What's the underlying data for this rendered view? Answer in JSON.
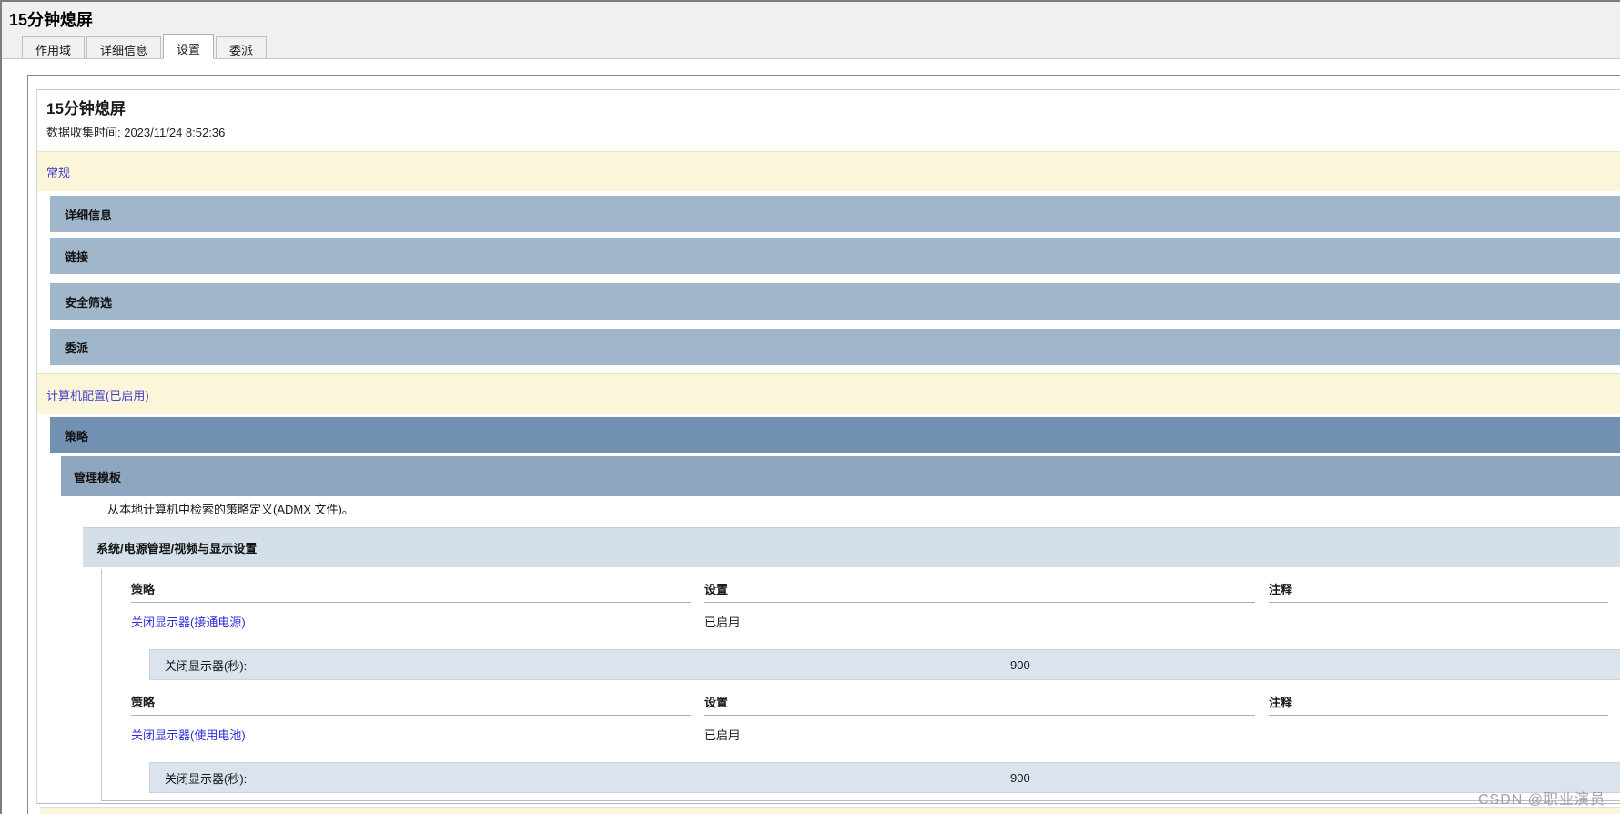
{
  "window": {
    "title": "15分钟熄屏"
  },
  "tabs": [
    {
      "label": "作用域",
      "active": false
    },
    {
      "label": "详细信息",
      "active": false
    },
    {
      "label": "设置",
      "active": true
    },
    {
      "label": "委派",
      "active": false
    }
  ],
  "report": {
    "title": "15分钟熄屏",
    "collected": "数据收集时间: 2023/11/24 8:52:36"
  },
  "general": {
    "label": "常规",
    "items": [
      "详细信息",
      "链接",
      "安全筛选",
      "委派"
    ]
  },
  "computer": {
    "label": "计算机配置(已启用)",
    "policies_label": "策略",
    "admin_templates_label": "管理模板",
    "admx_note": "从本地计算机中检索的策略定义(ADMX 文件)。",
    "category": "系统/电源管理/视频与显示设置",
    "tables": [
      {
        "headers": {
          "policy": "策略",
          "setting": "设置",
          "comment": "注释"
        },
        "policy_link": "关闭显示器(接通电源)",
        "setting_value": "已启用",
        "sub_label": "关闭显示器(秒):",
        "sub_value": "900"
      },
      {
        "headers": {
          "policy": "策略",
          "setting": "设置",
          "comment": "注释"
        },
        "policy_link": "关闭显示器(使用电池)",
        "setting_value": "已启用",
        "sub_label": "关闭显示器(秒):",
        "sub_value": "900"
      }
    ]
  },
  "watermark": "CSDN @职业演员",
  "colors": {
    "section_cream": "#fbf6da",
    "bar_steel": "#a0b6ca",
    "bar_dark": "#7290b2",
    "bar_mid": "#8ea6bf",
    "bar_light": "#d4dfea",
    "value_row": "#dbe4ee",
    "section_link": "#4242cc",
    "policy_link": "#2d2dd6"
  }
}
